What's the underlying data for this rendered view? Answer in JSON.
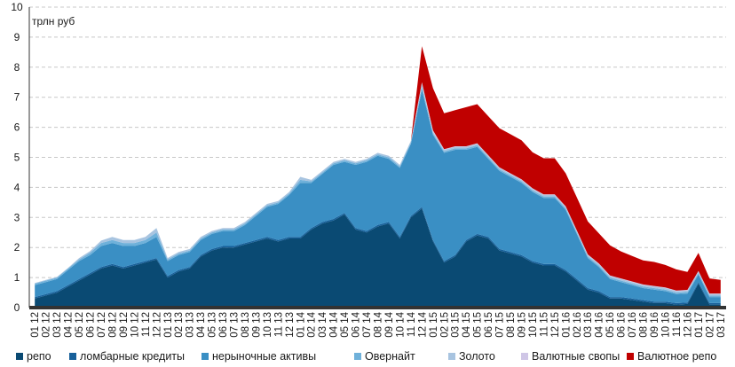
{
  "chart_data": {
    "type": "area",
    "stacked": true,
    "ylabel": "трлн руб",
    "ylim": [
      0,
      10
    ],
    "yticks": [
      0,
      1,
      2,
      3,
      4,
      5,
      6,
      7,
      8,
      9,
      10
    ],
    "grid": "horizontal dashed",
    "legend_position": "bottom",
    "x": [
      "01 12",
      "02 12",
      "03 12",
      "04 12",
      "05 12",
      "06 12",
      "07 12",
      "08 12",
      "09 12",
      "10 12",
      "11 12",
      "12 12",
      "01 13",
      "02 13",
      "03 13",
      "04 13",
      "05 13",
      "06 13",
      "07 13",
      "08 13",
      "09 13",
      "10 13",
      "11 13",
      "12 13",
      "01 14",
      "02 14",
      "03 14",
      "04 14",
      "05 14",
      "06 14",
      "07 14",
      "08 14",
      "09 14",
      "10 14",
      "11 14",
      "12 14",
      "01 15",
      "02 15",
      "03 15",
      "04 15",
      "05 15",
      "06 15",
      "07 15",
      "08 15",
      "09 15",
      "10 15",
      "11 15",
      "12 15",
      "01 16",
      "02 16",
      "03 16",
      "04 16",
      "05 16",
      "06 16",
      "07 16",
      "08 16",
      "09 16",
      "10 16",
      "11 16",
      "12 16",
      "01 17",
      "02 17",
      "03 17"
    ],
    "series": [
      {
        "name": "репо",
        "color": "#0a4a73",
        "values": [
          0.3,
          0.4,
          0.5,
          0.7,
          0.9,
          1.1,
          1.3,
          1.4,
          1.3,
          1.4,
          1.5,
          1.6,
          1.0,
          1.2,
          1.3,
          1.7,
          1.9,
          2.0,
          2.0,
          2.1,
          2.2,
          2.3,
          2.2,
          2.3,
          2.3,
          2.6,
          2.8,
          2.9,
          3.1,
          2.6,
          2.5,
          2.7,
          2.8,
          2.3,
          3.0,
          3.3,
          2.2,
          1.5,
          1.7,
          2.2,
          2.4,
          2.3,
          1.9,
          1.8,
          1.7,
          1.5,
          1.4,
          1.4,
          1.2,
          0.9,
          0.6,
          0.5,
          0.3,
          0.3,
          0.25,
          0.2,
          0.15,
          0.15,
          0.1,
          0.12,
          0.8,
          0.1,
          0.1
        ]
      },
      {
        "name": "ломбарные кредиты",
        "color": "#17609a",
        "values": [
          0.05,
          0.05,
          0.05,
          0.05,
          0.05,
          0.05,
          0.05,
          0.05,
          0.05,
          0.05,
          0.05,
          0.05,
          0.05,
          0.05,
          0.05,
          0.05,
          0.05,
          0.05,
          0.05,
          0.05,
          0.05,
          0.05,
          0.05,
          0.05,
          0.05,
          0.05,
          0.05,
          0.05,
          0.05,
          0.05,
          0.05,
          0.05,
          0.05,
          0.05,
          0.05,
          0.05,
          0.05,
          0.05,
          0.05,
          0.05,
          0.05,
          0.05,
          0.05,
          0.05,
          0.05,
          0.05,
          0.05,
          0.05,
          0.05,
          0.05,
          0.05,
          0.05,
          0.05,
          0.05,
          0.05,
          0.05,
          0.05,
          0.05,
          0.05,
          0.05,
          0.05,
          0.05,
          0.05
        ]
      },
      {
        "name": "нерыночные активы",
        "color": "#3a8fc4",
        "values": [
          0.4,
          0.4,
          0.4,
          0.5,
          0.6,
          0.6,
          0.7,
          0.7,
          0.7,
          0.6,
          0.6,
          0.7,
          0.5,
          0.5,
          0.5,
          0.5,
          0.5,
          0.5,
          0.5,
          0.6,
          0.8,
          1.0,
          1.2,
          1.4,
          1.8,
          1.5,
          1.6,
          1.8,
          1.7,
          2.1,
          2.3,
          2.3,
          2.1,
          2.3,
          2.4,
          3.9,
          3.5,
          3.6,
          3.5,
          3.0,
          2.9,
          2.6,
          2.6,
          2.5,
          2.4,
          2.3,
          2.2,
          2.2,
          2.0,
          1.5,
          1.0,
          0.8,
          0.6,
          0.5,
          0.45,
          0.4,
          0.4,
          0.35,
          0.3,
          0.3,
          0.25,
          0.2,
          0.2
        ]
      },
      {
        "name": "Овернайт",
        "color": "#6fb1da",
        "values": [
          0.05,
          0.05,
          0.05,
          0.05,
          0.05,
          0.08,
          0.1,
          0.1,
          0.1,
          0.1,
          0.1,
          0.15,
          0.05,
          0.05,
          0.05,
          0.05,
          0.05,
          0.05,
          0.05,
          0.05,
          0.05,
          0.05,
          0.05,
          0.05,
          0.1,
          0.05,
          0.05,
          0.05,
          0.05,
          0.05,
          0.05,
          0.05,
          0.05,
          0.05,
          0.05,
          0.1,
          0.05,
          0.05,
          0.05,
          0.05,
          0.05,
          0.05,
          0.05,
          0.05,
          0.05,
          0.05,
          0.05,
          0.05,
          0.05,
          0.05,
          0.05,
          0.05,
          0.05,
          0.05,
          0.05,
          0.05,
          0.05,
          0.05,
          0.05,
          0.05,
          0.05,
          0.05,
          0.05
        ]
      },
      {
        "name": "Золото",
        "color": "#a8c4e0",
        "values": [
          0.02,
          0.02,
          0.02,
          0.02,
          0.05,
          0.05,
          0.08,
          0.1,
          0.1,
          0.1,
          0.1,
          0.15,
          0.05,
          0.05,
          0.05,
          0.05,
          0.05,
          0.05,
          0.05,
          0.05,
          0.05,
          0.05,
          0.05,
          0.05,
          0.1,
          0.05,
          0.05,
          0.05,
          0.05,
          0.05,
          0.05,
          0.05,
          0.05,
          0.05,
          0.05,
          0.1,
          0.05,
          0.05,
          0.05,
          0.05,
          0.05,
          0.05,
          0.05,
          0.05,
          0.05,
          0.05,
          0.05,
          0.05,
          0.05,
          0.05,
          0.05,
          0.05,
          0.05,
          0.05,
          0.05,
          0.05,
          0.05,
          0.05,
          0.05,
          0.05,
          0.05,
          0.05,
          0.05
        ]
      },
      {
        "name": "Валютные свопы",
        "color": "#cfc6e6",
        "values": [
          0,
          0,
          0,
          0,
          0,
          0,
          0,
          0,
          0,
          0,
          0,
          0,
          0,
          0,
          0,
          0,
          0,
          0,
          0,
          0,
          0,
          0,
          0,
          0,
          0,
          0,
          0,
          0,
          0,
          0,
          0,
          0,
          0,
          0,
          0,
          0.05,
          0.05,
          0.02,
          0.02,
          0.02,
          0.02,
          0.02,
          0.02,
          0.02,
          0.02,
          0.02,
          0.02,
          0.02,
          0.02,
          0.02,
          0.02,
          0.02,
          0.02,
          0.02,
          0.02,
          0.02,
          0.02,
          0.02,
          0.02,
          0.02,
          0.02,
          0.02,
          0.02
        ]
      },
      {
        "name": "Валютное репо",
        "color": "#c00000",
        "values": [
          0,
          0,
          0,
          0,
          0,
          0,
          0,
          0,
          0,
          0,
          0,
          0,
          0,
          0,
          0,
          0,
          0,
          0,
          0,
          0,
          0,
          0,
          0,
          0,
          0,
          0,
          0,
          0,
          0,
          0,
          0,
          0,
          0,
          0,
          0,
          1.2,
          1.4,
          1.2,
          1.2,
          1.3,
          1.3,
          1.3,
          1.3,
          1.3,
          1.3,
          1.2,
          1.2,
          1.2,
          1.1,
          1.1,
          1.1,
          1.0,
          1.0,
          0.9,
          0.85,
          0.8,
          0.8,
          0.75,
          0.7,
          0.6,
          0.6,
          0.5,
          0.45
        ]
      }
    ]
  }
}
